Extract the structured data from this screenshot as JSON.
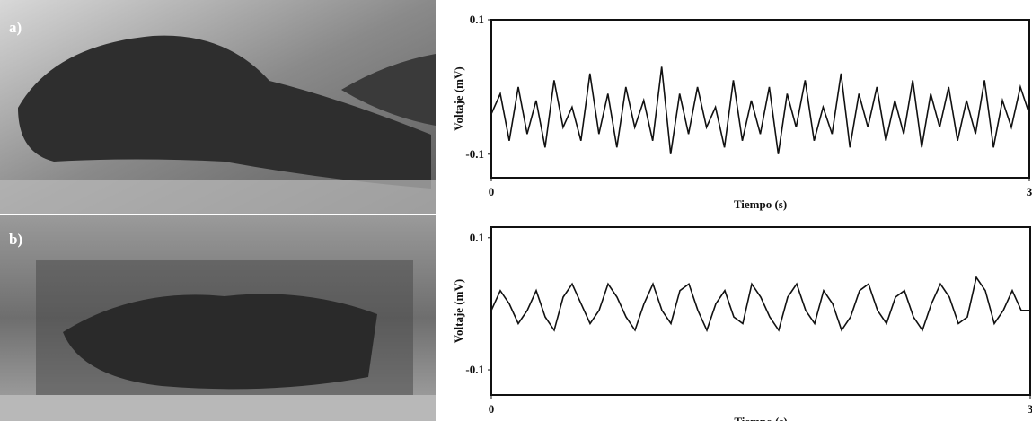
{
  "panels": [
    {
      "label": "a)"
    },
    {
      "label": "b)"
    }
  ],
  "chart_data": [
    {
      "type": "line",
      "xlabel": "Tiempo (s)",
      "ylabel": "Voltaje (mV)",
      "xlim": [
        0,
        3
      ],
      "xticks": [
        0,
        3
      ],
      "ylim": [
        -0.135,
        0.1
      ],
      "yticks": [
        0.1,
        -0.1
      ],
      "x": [
        0,
        0.05,
        0.1,
        0.15,
        0.2,
        0.25,
        0.3,
        0.35,
        0.4,
        0.45,
        0.5,
        0.55,
        0.6,
        0.65,
        0.7,
        0.75,
        0.8,
        0.85,
        0.9,
        0.95,
        1,
        1.05,
        1.1,
        1.15,
        1.2,
        1.25,
        1.3,
        1.35,
        1.4,
        1.45,
        1.5,
        1.55,
        1.6,
        1.65,
        1.7,
        1.75,
        1.8,
        1.85,
        1.9,
        1.95,
        2,
        2.05,
        2.1,
        2.15,
        2.2,
        2.25,
        2.3,
        2.35,
        2.4,
        2.45,
        2.5,
        2.55,
        2.6,
        2.65,
        2.7,
        2.75,
        2.8,
        2.85,
        2.9,
        2.95,
        3
      ],
      "series": [
        {
          "color": "#111111",
          "values": [
            -0.04,
            -0.01,
            -0.08,
            0.0,
            -0.07,
            -0.02,
            -0.09,
            0.01,
            -0.06,
            -0.03,
            -0.08,
            0.02,
            -0.07,
            -0.01,
            -0.09,
            0.0,
            -0.06,
            -0.02,
            -0.08,
            0.03,
            -0.1,
            -0.01,
            -0.07,
            0.0,
            -0.06,
            -0.03,
            -0.09,
            0.01,
            -0.08,
            -0.02,
            -0.07,
            0.0,
            -0.1,
            -0.01,
            -0.06,
            0.01,
            -0.08,
            -0.03,
            -0.07,
            0.02,
            -0.09,
            -0.01,
            -0.06,
            0.0,
            -0.08,
            -0.02,
            -0.07,
            0.01,
            -0.09,
            -0.01,
            -0.06,
            0.0,
            -0.08,
            -0.02,
            -0.07,
            0.01,
            -0.09,
            -0.02,
            -0.06,
            0.0,
            -0.04
          ]
        }
      ]
    },
    {
      "type": "line",
      "xlabel": "Tiempo (s)",
      "ylabel": "Voltaje (mV)",
      "xlim": [
        0,
        3
      ],
      "xticks": [
        0,
        3
      ],
      "ylim": [
        -0.138,
        0.116
      ],
      "yticks": [
        0.1,
        -0.1
      ],
      "x": [
        0,
        0.05,
        0.1,
        0.15,
        0.2,
        0.25,
        0.3,
        0.35,
        0.4,
        0.45,
        0.5,
        0.55,
        0.6,
        0.65,
        0.7,
        0.75,
        0.8,
        0.85,
        0.9,
        0.95,
        1,
        1.05,
        1.1,
        1.15,
        1.2,
        1.25,
        1.3,
        1.35,
        1.4,
        1.45,
        1.5,
        1.55,
        1.6,
        1.65,
        1.7,
        1.75,
        1.8,
        1.85,
        1.9,
        1.95,
        2,
        2.05,
        2.1,
        2.15,
        2.2,
        2.25,
        2.3,
        2.35,
        2.4,
        2.45,
        2.5,
        2.55,
        2.6,
        2.65,
        2.7,
        2.75,
        2.8,
        2.85,
        2.9,
        2.95,
        3
      ],
      "series": [
        {
          "color": "#111111",
          "values": [
            -0.01,
            0.02,
            0.0,
            -0.03,
            -0.01,
            0.02,
            -0.02,
            -0.04,
            0.01,
            0.03,
            0.0,
            -0.03,
            -0.01,
            0.03,
            0.01,
            -0.02,
            -0.04,
            0.0,
            0.03,
            -0.01,
            -0.03,
            0.02,
            0.03,
            -0.01,
            -0.04,
            0.0,
            0.02,
            -0.02,
            -0.03,
            0.03,
            0.01,
            -0.02,
            -0.04,
            0.01,
            0.03,
            -0.01,
            -0.03,
            0.02,
            0.0,
            -0.04,
            -0.02,
            0.02,
            0.03,
            -0.01,
            -0.03,
            0.01,
            0.02,
            -0.02,
            -0.04,
            0.0,
            0.03,
            0.01,
            -0.03,
            -0.02,
            0.04,
            0.02,
            -0.03,
            -0.01,
            0.02,
            -0.01,
            -0.01
          ]
        }
      ]
    }
  ]
}
